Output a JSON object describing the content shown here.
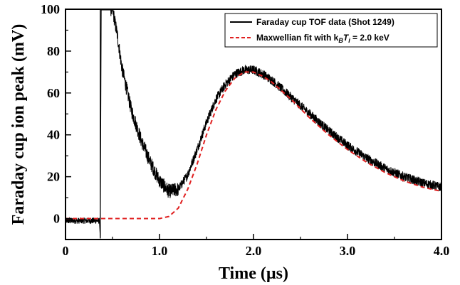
{
  "chart_data": {
    "type": "line",
    "xlabel": "Time (µs)",
    "ylabel": "Faraday cup ion peak (mV)",
    "xlim": [
      0,
      4.0
    ],
    "ylim": [
      -10,
      100
    ],
    "x_ticks": [
      "0",
      "1.0",
      "2.0",
      "3.0",
      "4.0"
    ],
    "y_ticks": [
      "0",
      "20",
      "40",
      "60",
      "80",
      "100"
    ],
    "legend_position": "top-right",
    "grid": false,
    "series": [
      {
        "name": "Faraday cup TOF data (Shot 1249)",
        "color": "#000000",
        "style": "solid-noisy",
        "x": [
          0.0,
          0.1,
          0.2,
          0.3,
          0.36,
          0.37,
          0.38,
          0.42,
          0.46,
          0.5,
          0.55,
          0.6,
          0.7,
          0.8,
          0.9,
          1.0,
          1.1,
          1.2,
          1.3,
          1.4,
          1.5,
          1.6,
          1.7,
          1.8,
          1.9,
          2.0,
          2.1,
          2.2,
          2.4,
          2.6,
          2.8,
          3.0,
          3.2,
          3.4,
          3.6,
          3.8,
          4.0
        ],
        "y": [
          -1,
          -1,
          -1,
          -1,
          -1,
          -9,
          100,
          100,
          100,
          100,
          88,
          72,
          52,
          38,
          27,
          18,
          13,
          14,
          21,
          33,
          46,
          57,
          64,
          69,
          71,
          71,
          69,
          66,
          58,
          50,
          42,
          35,
          29,
          24,
          20,
          17,
          15
        ]
      },
      {
        "name": "Maxwellian fit with k_BT_i = 2.0 keV",
        "color": "#e02020",
        "style": "dashed",
        "x": [
          0.0,
          0.4,
          0.8,
          1.0,
          1.1,
          1.2,
          1.3,
          1.4,
          1.5,
          1.6,
          1.7,
          1.8,
          1.9,
          2.0,
          2.1,
          2.2,
          2.4,
          2.6,
          2.8,
          3.0,
          3.2,
          3.4,
          3.6,
          3.8,
          4.0
        ],
        "y": [
          0,
          0,
          0,
          0,
          1,
          5,
          14,
          26,
          40,
          52,
          61,
          67,
          70,
          70,
          68,
          65,
          57,
          48,
          40,
          33,
          27,
          22,
          18,
          15,
          13
        ]
      }
    ]
  },
  "legend": {
    "entry1": "Faraday cup TOF data (Shot 1249)",
    "entry2_prefix": "Maxwellian fit with k",
    "entry2_sub1": "B",
    "entry2_mid": "T",
    "entry2_sub2": "i",
    "entry2_suffix": " = 2.0 keV"
  }
}
